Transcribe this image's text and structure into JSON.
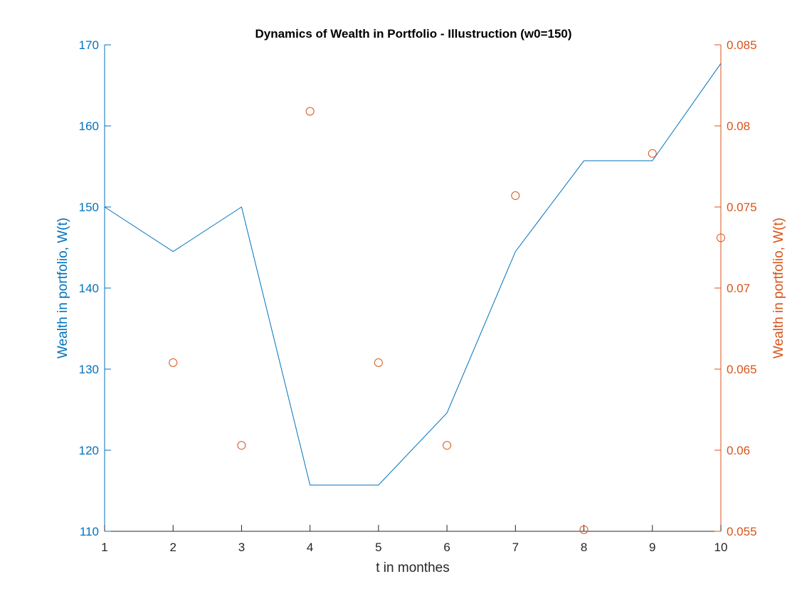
{
  "chart_data": {
    "type": "line",
    "title": "Dynamics of Wealth in Portfolio - Illustruction (w0=150)",
    "xlabel": "t in monthes",
    "ylabel_left": "Wealth in portfolio, W(t)",
    "ylabel_right": "Wealth in portfolio, W(t)",
    "xlim": [
      1,
      10
    ],
    "ylim_left": [
      110,
      170
    ],
    "ylim_right": [
      0.055,
      0.085
    ],
    "x_ticks": [
      "1",
      "2",
      "3",
      "4",
      "5",
      "6",
      "7",
      "8",
      "9",
      "10"
    ],
    "y_ticks_left": [
      "110",
      "120",
      "130",
      "140",
      "150",
      "160",
      "170"
    ],
    "y_ticks_right": [
      "0.055",
      "0.06",
      "0.065",
      "0.07",
      "0.075",
      "0.08",
      "0.085"
    ],
    "grid": false,
    "colors": {
      "left": "#0072BD",
      "right": "#D95319",
      "axis": "#262626"
    },
    "series": [
      {
        "axis": "left",
        "style": "line",
        "x": [
          1,
          2,
          3,
          4,
          5,
          6,
          7,
          8,
          9,
          10
        ],
        "values": [
          150,
          144.5,
          150,
          115.7,
          115.7,
          124.6,
          144.5,
          155.7,
          155.7,
          167.7
        ]
      },
      {
        "axis": "right",
        "style": "markers",
        "marker": "circle",
        "x": [
          2,
          3,
          4,
          5,
          6,
          7,
          8,
          9,
          10
        ],
        "values": [
          0.0654,
          0.0603,
          0.0809,
          0.0654,
          0.0603,
          0.0757,
          0.0551,
          0.0783,
          0.0731
        ]
      }
    ]
  }
}
